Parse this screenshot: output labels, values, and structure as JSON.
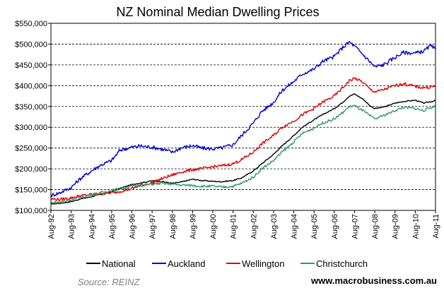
{
  "chart_data": {
    "type": "line",
    "title": "NZ Nominal Median Dwelling Prices",
    "xlabel": "",
    "ylabel": "",
    "ylim": [
      100000,
      550000
    ],
    "y_ticks": [
      "$100,000",
      "$150,000",
      "$200,000",
      "$250,000",
      "$300,000",
      "$350,000",
      "$400,000",
      "$450,000",
      "$500,000",
      "$550,000"
    ],
    "y_tick_values": [
      100000,
      150000,
      200000,
      250000,
      300000,
      350000,
      400000,
      450000,
      500000,
      550000
    ],
    "categories": [
      "Aug-92",
      "Aug-93",
      "Aug-94",
      "Aug-95",
      "Aug-96",
      "Aug-97",
      "Aug-98",
      "Aug-99",
      "Aug-00",
      "Aug-01",
      "Aug-02",
      "Aug-03",
      "Aug-04",
      "Aug-05",
      "Aug-06",
      "Aug-07",
      "Aug-08",
      "Aug-09",
      "Aug-10",
      "Aug-11"
    ],
    "x_start_year": 1992.583,
    "x_end_year": 2011.583,
    "legend_position": "bottom",
    "series": [
      {
        "name": "National",
        "color": "#000000",
        "points": [
          [
            1992.583,
            115000
          ],
          [
            1993.0,
            117000
          ],
          [
            1993.583,
            121000
          ],
          [
            1994.0,
            127000
          ],
          [
            1994.583,
            133000
          ],
          [
            1995.0,
            138000
          ],
          [
            1995.583,
            145000
          ],
          [
            1996.0,
            153000
          ],
          [
            1996.583,
            162000
          ],
          [
            1997.0,
            166000
          ],
          [
            1997.583,
            171000
          ],
          [
            1998.0,
            170000
          ],
          [
            1998.583,
            165000
          ],
          [
            1999.0,
            168000
          ],
          [
            1999.583,
            175000
          ],
          [
            2000.0,
            172000
          ],
          [
            2000.583,
            170000
          ],
          [
            2001.0,
            169000
          ],
          [
            2001.583,
            172000
          ],
          [
            2002.0,
            178000
          ],
          [
            2002.583,
            195000
          ],
          [
            2003.0,
            212000
          ],
          [
            2003.583,
            235000
          ],
          [
            2004.0,
            255000
          ],
          [
            2004.583,
            280000
          ],
          [
            2005.0,
            300000
          ],
          [
            2005.583,
            318000
          ],
          [
            2006.0,
            330000
          ],
          [
            2006.583,
            345000
          ],
          [
            2007.0,
            360000
          ],
          [
            2007.333,
            375000
          ],
          [
            2007.583,
            380000
          ],
          [
            2008.0,
            368000
          ],
          [
            2008.333,
            352000
          ],
          [
            2008.583,
            345000
          ],
          [
            2009.0,
            348000
          ],
          [
            2009.583,
            358000
          ],
          [
            2010.0,
            362000
          ],
          [
            2010.583,
            365000
          ],
          [
            2011.0,
            358000
          ],
          [
            2011.583,
            364000
          ]
        ]
      },
      {
        "name": "Auckland",
        "color": "#0000cc",
        "points": [
          [
            1992.583,
            136000
          ],
          [
            1993.0,
            142000
          ],
          [
            1993.583,
            155000
          ],
          [
            1994.0,
            175000
          ],
          [
            1994.583,
            195000
          ],
          [
            1995.0,
            208000
          ],
          [
            1995.583,
            220000
          ],
          [
            1996.0,
            245000
          ],
          [
            1996.583,
            252000
          ],
          [
            1997.0,
            255000
          ],
          [
            1997.583,
            252000
          ],
          [
            1998.0,
            248000
          ],
          [
            1998.583,
            240000
          ],
          [
            1999.0,
            250000
          ],
          [
            1999.583,
            256000
          ],
          [
            2000.0,
            250000
          ],
          [
            2000.583,
            248000
          ],
          [
            2001.0,
            250000
          ],
          [
            2001.583,
            258000
          ],
          [
            2002.0,
            280000
          ],
          [
            2002.583,
            310000
          ],
          [
            2003.0,
            338000
          ],
          [
            2003.583,
            360000
          ],
          [
            2004.0,
            388000
          ],
          [
            2004.583,
            410000
          ],
          [
            2005.0,
            428000
          ],
          [
            2005.583,
            440000
          ],
          [
            2006.0,
            458000
          ],
          [
            2006.583,
            470000
          ],
          [
            2007.0,
            492000
          ],
          [
            2007.333,
            505000
          ],
          [
            2007.583,
            495000
          ],
          [
            2008.0,
            475000
          ],
          [
            2008.333,
            458000
          ],
          [
            2008.583,
            445000
          ],
          [
            2009.0,
            450000
          ],
          [
            2009.583,
            468000
          ],
          [
            2010.0,
            480000
          ],
          [
            2010.583,
            478000
          ],
          [
            2011.0,
            483000
          ],
          [
            2011.333,
            496000
          ],
          [
            2011.583,
            487000
          ]
        ]
      },
      {
        "name": "Wellington",
        "color": "#dd0000",
        "points": [
          [
            1992.583,
            128000
          ],
          [
            1993.0,
            126000
          ],
          [
            1993.583,
            130000
          ],
          [
            1994.0,
            135000
          ],
          [
            1994.583,
            138000
          ],
          [
            1995.0,
            140000
          ],
          [
            1995.583,
            142000
          ],
          [
            1996.0,
            146000
          ],
          [
            1996.583,
            152000
          ],
          [
            1997.0,
            160000
          ],
          [
            1997.583,
            166000
          ],
          [
            1998.0,
            175000
          ],
          [
            1998.583,
            185000
          ],
          [
            1999.0,
            192000
          ],
          [
            1999.583,
            198000
          ],
          [
            2000.0,
            200000
          ],
          [
            2000.583,
            205000
          ],
          [
            2001.0,
            207000
          ],
          [
            2001.583,
            212000
          ],
          [
            2002.0,
            222000
          ],
          [
            2002.583,
            240000
          ],
          [
            2003.0,
            260000
          ],
          [
            2003.583,
            280000
          ],
          [
            2004.0,
            300000
          ],
          [
            2004.583,
            315000
          ],
          [
            2005.0,
            330000
          ],
          [
            2005.583,
            345000
          ],
          [
            2006.0,
            360000
          ],
          [
            2006.583,
            375000
          ],
          [
            2007.0,
            395000
          ],
          [
            2007.333,
            412000
          ],
          [
            2007.583,
            418000
          ],
          [
            2008.0,
            408000
          ],
          [
            2008.333,
            392000
          ],
          [
            2008.583,
            385000
          ],
          [
            2009.0,
            390000
          ],
          [
            2009.583,
            400000
          ],
          [
            2010.0,
            405000
          ],
          [
            2010.583,
            398000
          ],
          [
            2011.0,
            395000
          ],
          [
            2011.583,
            398000
          ]
        ]
      },
      {
        "name": "Christchurch",
        "color": "#339966",
        "points": [
          [
            1992.583,
            118000
          ],
          [
            1993.0,
            120000
          ],
          [
            1993.583,
            125000
          ],
          [
            1994.0,
            130000
          ],
          [
            1994.583,
            138000
          ],
          [
            1995.0,
            142000
          ],
          [
            1995.583,
            148000
          ],
          [
            1996.0,
            152000
          ],
          [
            1996.583,
            158000
          ],
          [
            1997.0,
            160000
          ],
          [
            1997.583,
            163000
          ],
          [
            1998.0,
            165000
          ],
          [
            1998.583,
            163000
          ],
          [
            1999.0,
            161000
          ],
          [
            1999.583,
            160000
          ],
          [
            2000.0,
            158000
          ],
          [
            2000.583,
            158000
          ],
          [
            2001.0,
            156000
          ],
          [
            2001.583,
            158000
          ],
          [
            2002.0,
            165000
          ],
          [
            2002.583,
            180000
          ],
          [
            2003.0,
            200000
          ],
          [
            2003.583,
            220000
          ],
          [
            2004.0,
            240000
          ],
          [
            2004.583,
            265000
          ],
          [
            2005.0,
            285000
          ],
          [
            2005.583,
            298000
          ],
          [
            2006.0,
            310000
          ],
          [
            2006.583,
            320000
          ],
          [
            2007.0,
            335000
          ],
          [
            2007.333,
            350000
          ],
          [
            2007.583,
            352000
          ],
          [
            2008.0,
            340000
          ],
          [
            2008.333,
            328000
          ],
          [
            2008.583,
            320000
          ],
          [
            2009.0,
            328000
          ],
          [
            2009.583,
            340000
          ],
          [
            2010.0,
            348000
          ],
          [
            2010.583,
            345000
          ],
          [
            2011.0,
            340000
          ],
          [
            2011.583,
            352000
          ]
        ]
      }
    ]
  },
  "source": "Source: REINZ",
  "website": "www.macrobusiness.com.au"
}
